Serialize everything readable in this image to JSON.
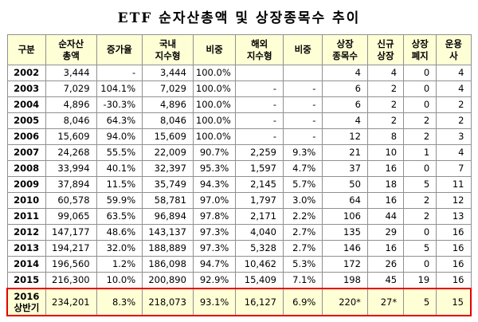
{
  "title": "ETF 순자산총액 및 상장종목수 추이",
  "colors": {
    "header_bg": "#FFFFD6",
    "highlight_bg": "#FFFFD6",
    "highlight_border": "#E60000",
    "grid": "#909090",
    "text": "#000000"
  },
  "chart_data": {
    "type": "table",
    "title": "ETF 순자산총액 및 상장종목수 추이",
    "columns": [
      "구분",
      "순자산\n총액",
      "증가율",
      "국내\n지수형",
      "비중",
      "해외\n지수형",
      "비중",
      "상장\n종목수",
      "신규\n상장",
      "상장\n폐지",
      "운용\n사"
    ],
    "rows": [
      [
        "2002",
        "3,444",
        "-",
        "3,444",
        "100.0%",
        "",
        "",
        "4",
        "4",
        "0",
        "4"
      ],
      [
        "2003",
        "7,029",
        "104.1%",
        "7,029",
        "100.0%",
        "-",
        "-",
        "6",
        "2",
        "0",
        "4"
      ],
      [
        "2004",
        "4,896",
        "-30.3%",
        "4,896",
        "100.0%",
        "-",
        "-",
        "6",
        "2",
        "0",
        "2"
      ],
      [
        "2005",
        "8,046",
        "64.3%",
        "8,046",
        "100.0%",
        "-",
        "-",
        "4",
        "2",
        "2",
        "2"
      ],
      [
        "2006",
        "15,609",
        "94.0%",
        "15,609",
        "100.0%",
        "-",
        "-",
        "12",
        "8",
        "2",
        "3"
      ],
      [
        "2007",
        "24,268",
        "55.5%",
        "22,009",
        "90.7%",
        "2,259",
        "9.3%",
        "21",
        "10",
        "1",
        "4"
      ],
      [
        "2008",
        "33,994",
        "40.1%",
        "32,397",
        "95.3%",
        "1,597",
        "4.7%",
        "37",
        "16",
        "0",
        "7"
      ],
      [
        "2009",
        "37,894",
        "11.5%",
        "35,749",
        "94.3%",
        "2,145",
        "5.7%",
        "50",
        "18",
        "5",
        "11"
      ],
      [
        "2010",
        "60,578",
        "59.9%",
        "58,781",
        "97.0%",
        "1,797",
        "3.0%",
        "64",
        "16",
        "2",
        "12"
      ],
      [
        "2011",
        "99,065",
        "63.5%",
        "96,894",
        "97.8%",
        "2,171",
        "2.2%",
        "106",
        "44",
        "2",
        "13"
      ],
      [
        "2012",
        "147,177",
        "48.6%",
        "143,137",
        "97.3%",
        "4,040",
        "2.7%",
        "135",
        "29",
        "0",
        "16"
      ],
      [
        "2013",
        "194,217",
        "32.0%",
        "188,889",
        "97.3%",
        "5,328",
        "2.7%",
        "146",
        "16",
        "5",
        "16"
      ],
      [
        "2014",
        "196,560",
        "1.2%",
        "186,098",
        "94.7%",
        "10,462",
        "5.3%",
        "172",
        "26",
        "0",
        "16"
      ],
      [
        "2015",
        "216,300",
        "10.0%",
        "200,890",
        "92.9%",
        "15,409",
        "7.1%",
        "198",
        "45",
        "19",
        "16"
      ],
      [
        "2016\n상반기",
        "234,201",
        "8.3%",
        "218,073",
        "93.1%",
        "16,127",
        "6.9%",
        "220*",
        "27*",
        "5",
        "15"
      ]
    ],
    "highlight_row_index": 14
  }
}
